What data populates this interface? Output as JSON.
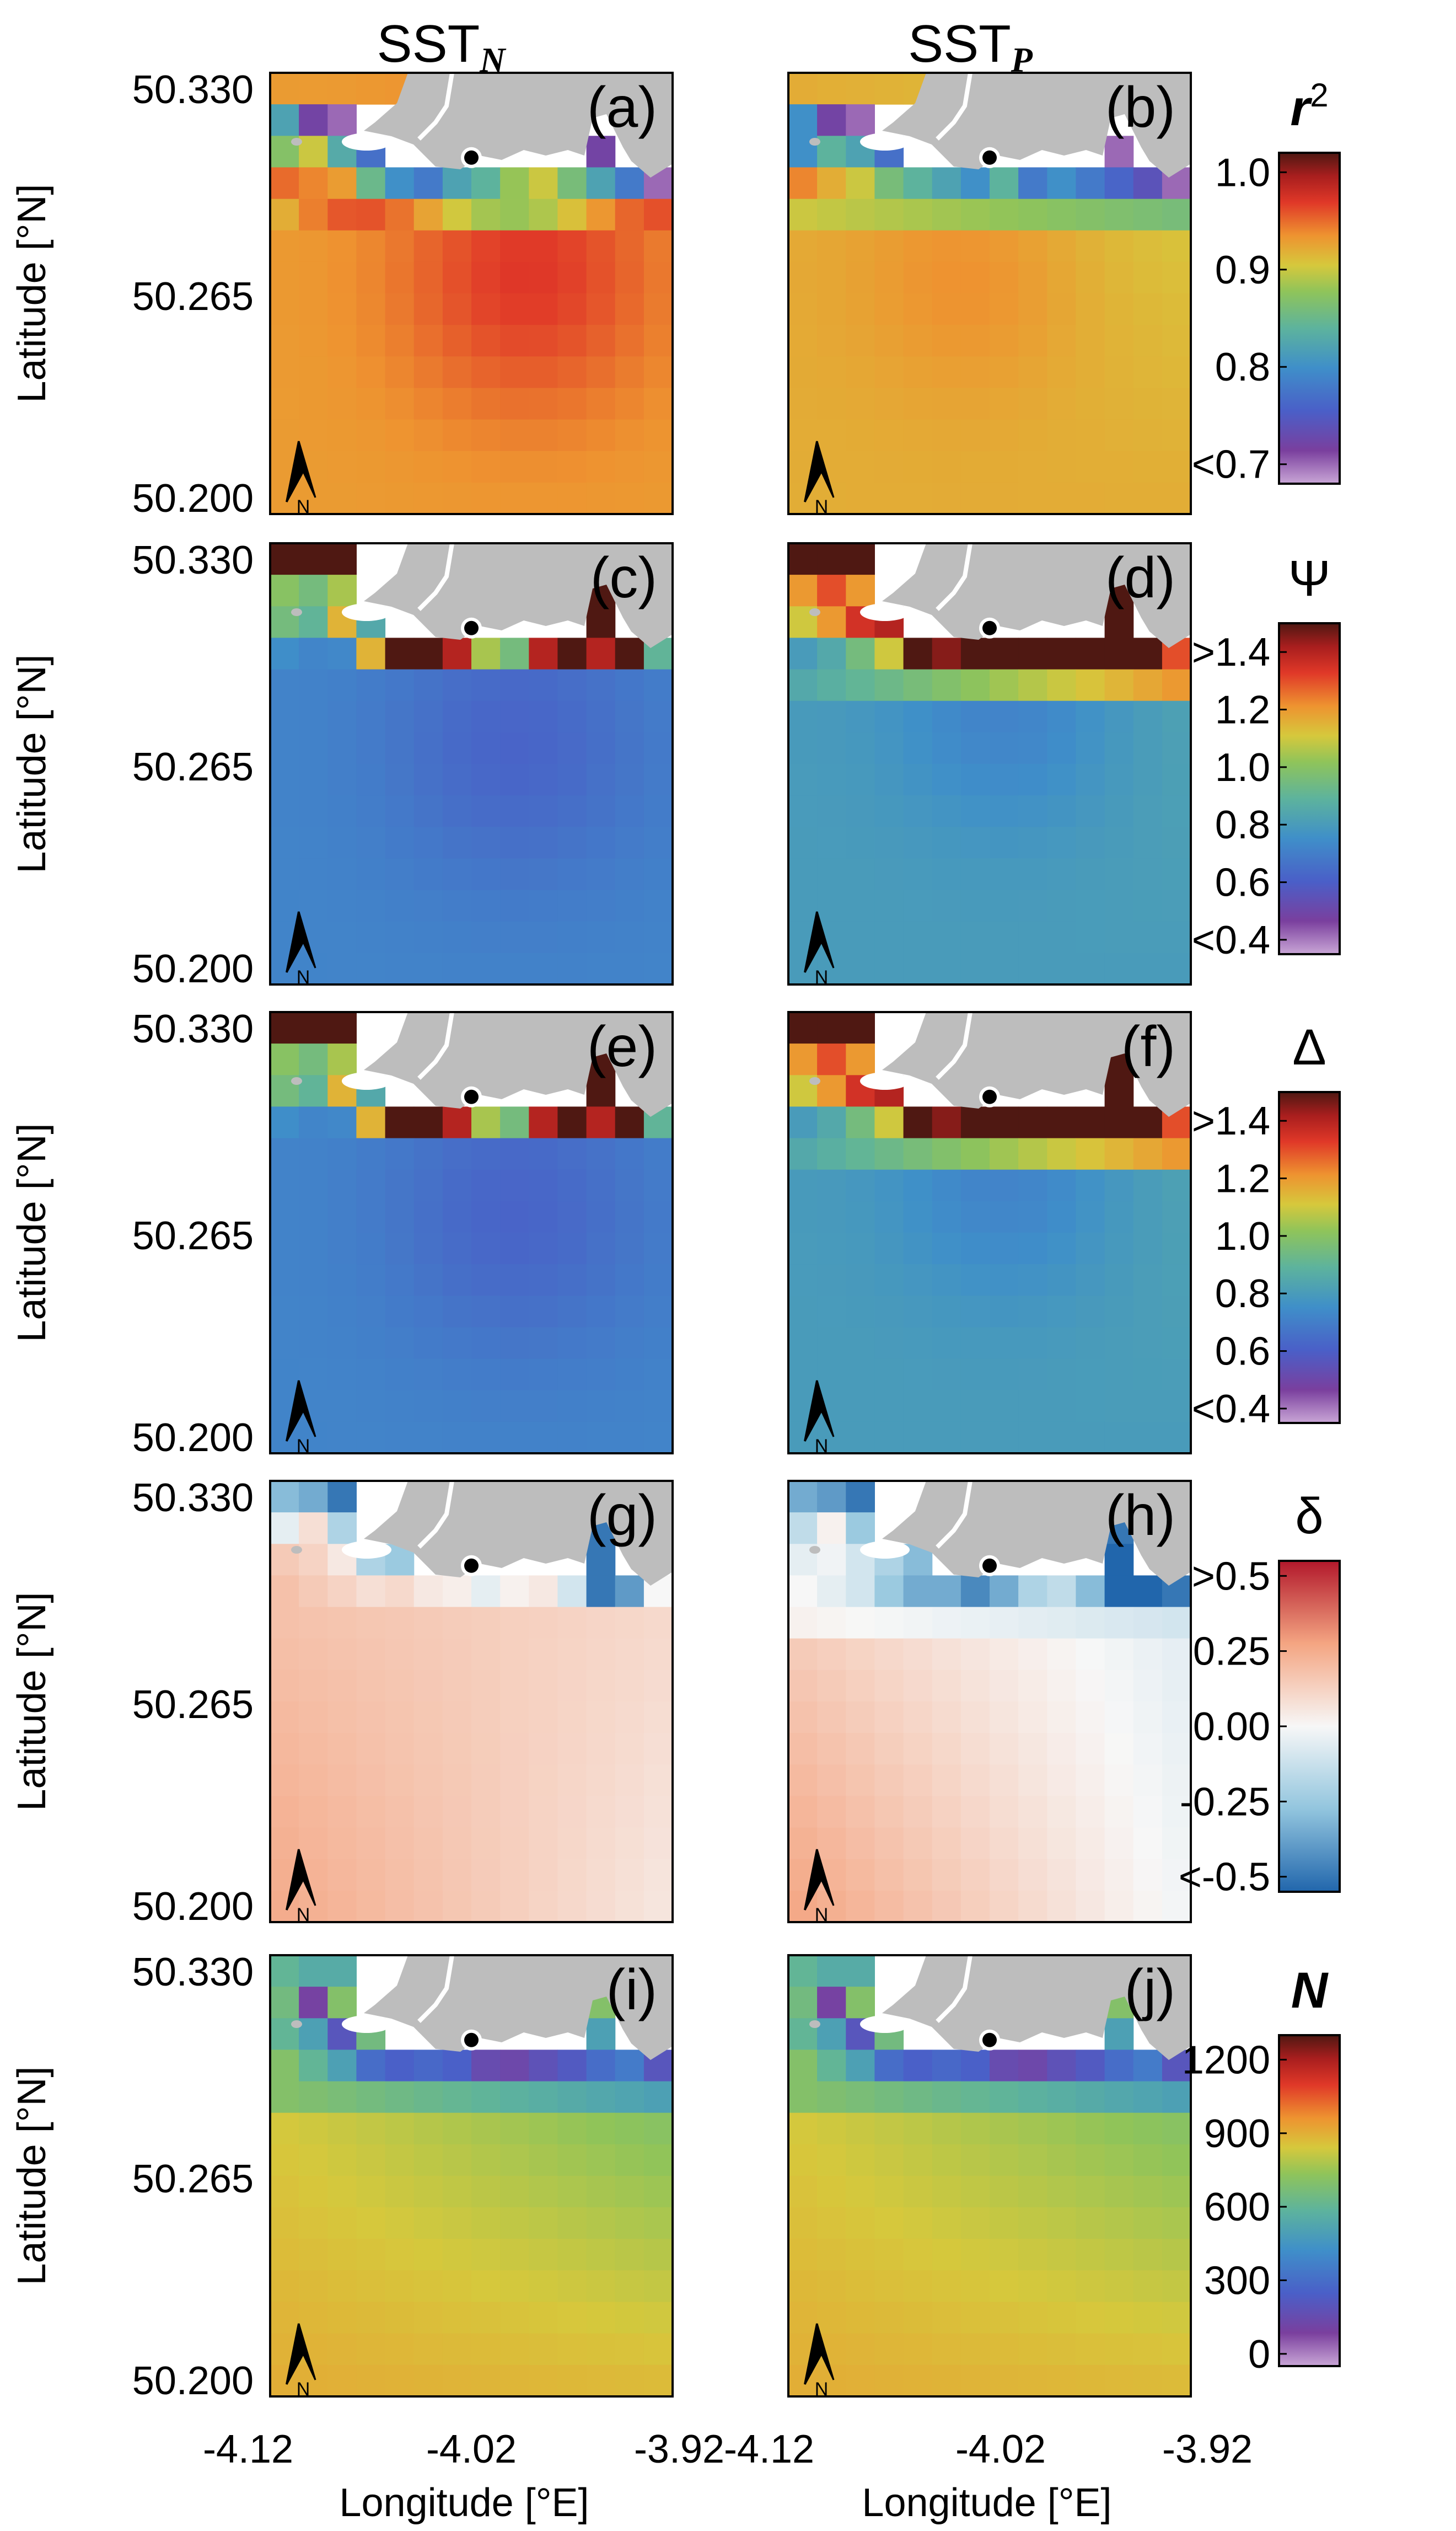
{
  "columns": [
    {
      "base": "SST",
      "sub": "N"
    },
    {
      "base": "SST",
      "sub": "P"
    }
  ],
  "ylabel": "Latitude [°N]",
  "xlabel": "Longitude [°E]",
  "north_arrow": "N",
  "colors": {
    "land": "#bdbdbd",
    "frame": "#000000",
    "station": "#000000"
  },
  "chart_data": {
    "type": "heatmap",
    "grid": {
      "lon": [
        -4.1125,
        -4.0975,
        -4.0825,
        -4.0675,
        -4.0525,
        -4.0375,
        -4.0225,
        -4.0075,
        -3.9925,
        -3.9775,
        -3.9625,
        -3.9475,
        -3.9325,
        -3.9175
      ],
      "lat": [
        50.3275,
        50.3175,
        50.3075,
        50.2975,
        50.2875,
        50.2775,
        50.2675,
        50.2575,
        50.2475,
        50.2375,
        50.2275,
        50.2175,
        50.2075,
        50.2025
      ]
    },
    "x_ticks": [
      "-4.12",
      "-4.02",
      "-3.92"
    ],
    "y_ticks": [
      "50.330",
      "50.265",
      "50.200"
    ],
    "xlim": [
      -4.12,
      -3.92
    ],
    "ylim": [
      50.2,
      50.33
    ],
    "station": {
      "lon": -4.02,
      "lat": 50.305
    },
    "rows": [
      {
        "colorbar": {
          "title": "r",
          "title_sup": "2",
          "ticks": [
            "1.0",
            "0.9",
            "0.8",
            "<0.7"
          ],
          "tick_values": [
            1.0,
            0.9,
            0.8,
            0.7
          ],
          "vmin": 0.68,
          "vmax": 1.02,
          "colormap": "rainbow"
        },
        "panels": [
          {
            "label": "(a)",
            "column": "N",
            "pattern": "r2_N"
          },
          {
            "label": "(b)",
            "column": "P",
            "pattern": "r2_P"
          }
        ]
      },
      {
        "colorbar": {
          "title": "Ψ",
          "title_sup": "",
          "ticks": [
            ">1.4",
            "1.2",
            "1.0",
            "0.8",
            "0.6",
            "<0.4"
          ],
          "tick_values": [
            1.4,
            1.2,
            1.0,
            0.8,
            0.6,
            0.4
          ],
          "vmin": 0.35,
          "vmax": 1.5,
          "colormap": "rainbow"
        },
        "panels": [
          {
            "label": "(c)",
            "column": "N",
            "pattern": "psi_N"
          },
          {
            "label": "(d)",
            "column": "P",
            "pattern": "psi_P"
          }
        ]
      },
      {
        "colorbar": {
          "title": "Δ",
          "title_sup": "",
          "ticks": [
            ">1.4",
            "1.2",
            "1.0",
            "0.8",
            "0.6",
            "<0.4"
          ],
          "tick_values": [
            1.4,
            1.2,
            1.0,
            0.8,
            0.6,
            0.4
          ],
          "vmin": 0.35,
          "vmax": 1.5,
          "colormap": "rainbow"
        },
        "panels": [
          {
            "label": "(e)",
            "column": "N",
            "pattern": "delta_N"
          },
          {
            "label": "(f)",
            "column": "P",
            "pattern": "delta_P"
          }
        ]
      },
      {
        "colorbar": {
          "title": "δ",
          "title_sup": "",
          "ticks": [
            ">0.5",
            "0.25",
            "0.00",
            "-0.25",
            "<-0.5"
          ],
          "tick_values": [
            0.5,
            0.25,
            0.0,
            -0.25,
            -0.5
          ],
          "vmin": -0.55,
          "vmax": 0.55,
          "colormap": "diverging"
        },
        "panels": [
          {
            "label": "(g)",
            "column": "N",
            "pattern": "bias_N"
          },
          {
            "label": "(h)",
            "column": "P",
            "pattern": "bias_P"
          }
        ]
      },
      {
        "colorbar": {
          "title": "N",
          "title_sup": "",
          "ticks": [
            "1200",
            "900",
            "600",
            "300",
            "0"
          ],
          "tick_values": [
            1200,
            900,
            600,
            300,
            0
          ],
          "vmin": -50,
          "vmax": 1300,
          "colormap": "rainbow"
        },
        "panels": [
          {
            "label": "(i)",
            "column": "N",
            "pattern": "count_N"
          },
          {
            "label": "(j)",
            "column": "P",
            "pattern": "count_P"
          }
        ]
      }
    ]
  }
}
